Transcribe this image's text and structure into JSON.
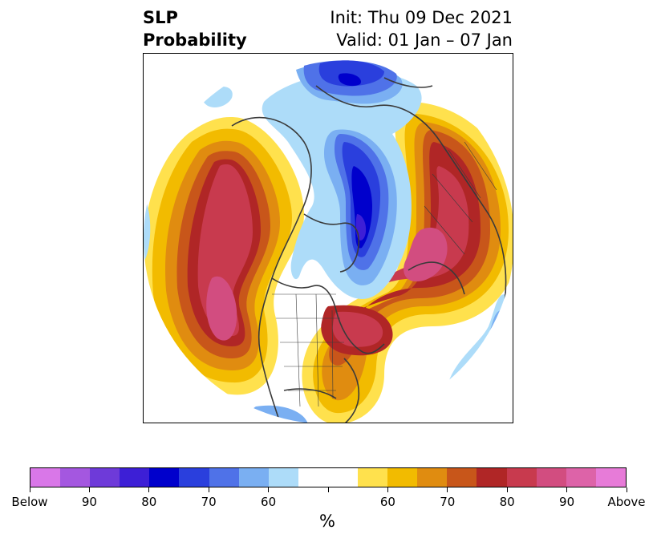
{
  "header": {
    "title_line1": "SLP",
    "title_line2": "Probability",
    "init": "Init: Thu 09 Dec 2021",
    "valid": "Valid: 01 Jan – 07 Jan"
  },
  "colorbar": {
    "colors": [
      "#d977e8",
      "#a457e0",
      "#6e3ad9",
      "#3d1fd6",
      "#0000cc",
      "#2a3fdd",
      "#4f72e8",
      "#7aaff2",
      "#addcf9",
      "#ffffff",
      "#ffffff",
      "#ffe14d",
      "#f2bb00",
      "#e08c10",
      "#c8561a",
      "#b02626",
      "#c83a4e",
      "#d24d80",
      "#dd63a8",
      "#e77bd8"
    ],
    "tick_labels": [
      "Below",
      "90",
      "80",
      "70",
      "60",
      "60",
      "70",
      "80",
      "90",
      "Above"
    ],
    "unit": "%"
  },
  "map": {
    "projection": "north polar stereographic",
    "colors": {
      "below_60": "#addcf9",
      "below_65": "#7aaff2",
      "below_70": "#4f72e8",
      "below_75": "#2a3fdd",
      "below_80": "#0000cc",
      "below_85": "#3d1fd6",
      "above_60": "#ffe14d",
      "above_65": "#f2bb00",
      "above_70": "#e08c10",
      "above_75": "#c8561a",
      "above_80": "#b02626",
      "above_85": "#c83a4e",
      "above_90": "#d24d80",
      "coastline": "#3a3a3a"
    }
  }
}
